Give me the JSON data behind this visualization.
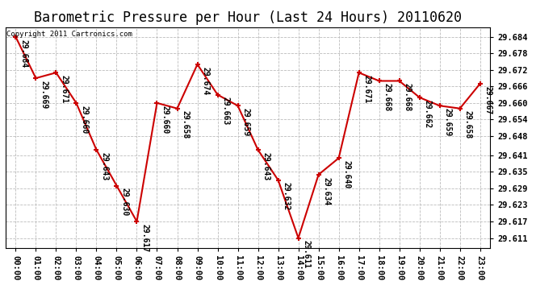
{
  "title": "Barometric Pressure per Hour (Last 24 Hours) 20110620",
  "copyright": "Copyright 2011 Cartronics.com",
  "hours": [
    "00:00",
    "01:00",
    "02:00",
    "03:00",
    "04:00",
    "05:00",
    "06:00",
    "07:00",
    "08:00",
    "09:00",
    "10:00",
    "11:00",
    "12:00",
    "13:00",
    "14:00",
    "15:00",
    "16:00",
    "17:00",
    "18:00",
    "19:00",
    "20:00",
    "21:00",
    "22:00",
    "23:00"
  ],
  "values": [
    29.684,
    29.669,
    29.671,
    29.66,
    29.643,
    29.63,
    29.617,
    29.66,
    29.658,
    29.674,
    29.663,
    29.659,
    29.643,
    29.632,
    29.611,
    29.634,
    29.64,
    29.671,
    29.668,
    29.668,
    29.662,
    29.659,
    29.658,
    29.667
  ],
  "labels": [
    "29.684",
    "29.669",
    "29.671",
    "29.660",
    "29.643",
    "29.630",
    "29.617",
    "29.660",
    "29.658",
    "29.674",
    "29.663",
    "29.659",
    "29.643",
    "29.632",
    "29.611",
    "29.634",
    "29.640",
    "29.671",
    "29.668",
    "29.668",
    "29.662",
    "29.659",
    "29.658",
    "29.667"
  ],
  "line_color": "#cc0000",
  "marker_color": "#cc0000",
  "bg_color": "#ffffff",
  "grid_color": "#bbbbbb",
  "text_color": "#000000",
  "ylim_min": 29.6075,
  "ylim_max": 29.6875,
  "yticks": [
    29.611,
    29.617,
    29.623,
    29.629,
    29.635,
    29.641,
    29.648,
    29.654,
    29.66,
    29.666,
    29.672,
    29.678,
    29.684
  ],
  "title_fontsize": 12,
  "label_fontsize": 7,
  "tick_fontsize": 7.5,
  "copyright_fontsize": 6.5
}
